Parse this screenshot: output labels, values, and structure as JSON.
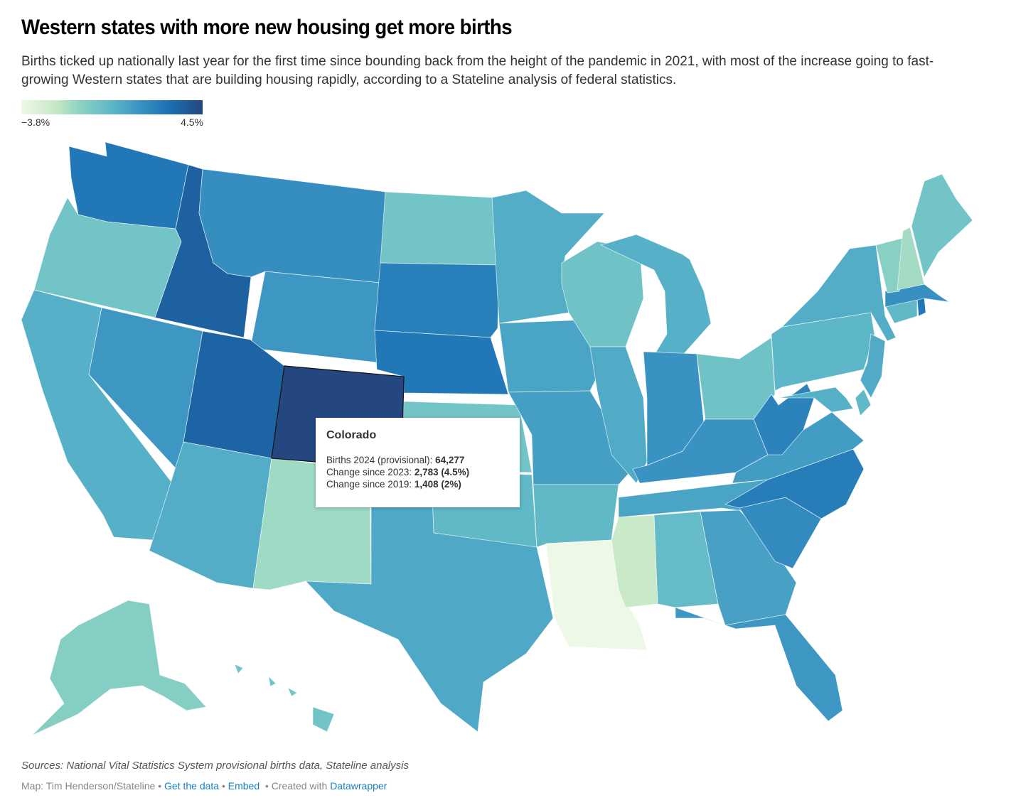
{
  "header": {
    "title": "Western states with more new housing get more births",
    "subtitle": "Births ticked up nationally last year for the first time since bounding back from the height of the pandemic in 2021, with most of the increase going to fast-growing Western states that are building housing rapidly, according to a Stateline analysis of federal statistics."
  },
  "legend": {
    "min_label": "−3.8%",
    "max_label": "4.5%",
    "min_value": -3.8,
    "max_value": 4.5,
    "colors": [
      "#eef8e6",
      "#c3e7c5",
      "#8dd3c3",
      "#5cb6c8",
      "#3b94c3",
      "#1b6fb2",
      "#24477f"
    ]
  },
  "chart_data": {
    "type": "choropleth",
    "title": "Western states with more new housing get more births",
    "metric": "Percent change in births since 2023",
    "scale": {
      "min": -3.8,
      "max": 4.5,
      "palette": "green-blue sequential"
    },
    "states": [
      {
        "id": "WA",
        "name": "Washington",
        "value": 2.8
      },
      {
        "id": "OR",
        "name": "Oregon",
        "value": -0.3
      },
      {
        "id": "CA",
        "name": "California",
        "value": 0.6
      },
      {
        "id": "ID",
        "name": "Idaho",
        "value": 3.6
      },
      {
        "id": "NV",
        "name": "Nevada",
        "value": 1.6
      },
      {
        "id": "MT",
        "name": "Montana",
        "value": 2.0
      },
      {
        "id": "WY",
        "name": "Wyoming",
        "value": 1.6
      },
      {
        "id": "UT",
        "name": "Utah",
        "value": 3.5
      },
      {
        "id": "CO",
        "name": "Colorado",
        "value": 4.5
      },
      {
        "id": "AZ",
        "name": "Arizona",
        "value": 0.7
      },
      {
        "id": "NM",
        "name": "New Mexico",
        "value": -1.5
      },
      {
        "id": "ND",
        "name": "North Dakota",
        "value": -0.3
      },
      {
        "id": "SD",
        "name": "South Dakota",
        "value": 2.5
      },
      {
        "id": "NE",
        "name": "Nebraska",
        "value": 2.8
      },
      {
        "id": "KS",
        "name": "Kansas",
        "value": -0.3
      },
      {
        "id": "OK",
        "name": "Oklahoma",
        "value": 0.2
      },
      {
        "id": "TX",
        "name": "Texas",
        "value": 0.9
      },
      {
        "id": "MN",
        "name": "Minnesota",
        "value": 0.7
      },
      {
        "id": "IA",
        "name": "Iowa",
        "value": 1.1
      },
      {
        "id": "MO",
        "name": "Missouri",
        "value": 1.3
      },
      {
        "id": "AR",
        "name": "Arkansas",
        "value": 0.2
      },
      {
        "id": "LA",
        "name": "Louisiana",
        "value": -3.8
      },
      {
        "id": "WI",
        "name": "Wisconsin",
        "value": -0.2
      },
      {
        "id": "IL",
        "name": "Illinois",
        "value": 0.8
      },
      {
        "id": "MI",
        "name": "Michigan",
        "value": 0.6
      },
      {
        "id": "IN",
        "name": "Indiana",
        "value": 1.8
      },
      {
        "id": "OH",
        "name": "Ohio",
        "value": -0.2
      },
      {
        "id": "KY",
        "name": "Kentucky",
        "value": 1.8
      },
      {
        "id": "TN",
        "name": "Tennessee",
        "value": 1.1
      },
      {
        "id": "MS",
        "name": "Mississippi",
        "value": -2.6
      },
      {
        "id": "AL",
        "name": "Alabama",
        "value": 0.1
      },
      {
        "id": "GA",
        "name": "Georgia",
        "value": 1.2
      },
      {
        "id": "FL",
        "name": "Florida",
        "value": 1.6
      },
      {
        "id": "SC",
        "name": "South Carolina",
        "value": 2.1
      },
      {
        "id": "NC",
        "name": "North Carolina",
        "value": 2.6
      },
      {
        "id": "VA",
        "name": "Virginia",
        "value": 1.4
      },
      {
        "id": "WV",
        "name": "West Virginia",
        "value": 2.4
      },
      {
        "id": "MD",
        "name": "Maryland",
        "value": 0.6
      },
      {
        "id": "DE",
        "name": "Delaware",
        "value": 0.2
      },
      {
        "id": "PA",
        "name": "Pennsylvania",
        "value": 0.3
      },
      {
        "id": "NJ",
        "name": "New Jersey",
        "value": 0.8
      },
      {
        "id": "NY",
        "name": "New York",
        "value": 0.7
      },
      {
        "id": "CT",
        "name": "Connecticut",
        "value": 0.2
      },
      {
        "id": "RI",
        "name": "Rhode Island",
        "value": 2.8
      },
      {
        "id": "MA",
        "name": "Massachusetts",
        "value": 1.9
      },
      {
        "id": "VT",
        "name": "Vermont",
        "value": -0.9
      },
      {
        "id": "NH",
        "name": "New Hampshire",
        "value": -1.6
      },
      {
        "id": "ME",
        "name": "Maine",
        "value": -0.3
      },
      {
        "id": "AK",
        "name": "Alaska",
        "value": -0.8
      },
      {
        "id": "HI",
        "name": "Hawaii",
        "value": -0.3
      }
    ]
  },
  "tooltip": {
    "state": "Colorado",
    "rows": [
      {
        "label": "Births 2024 (provisional): ",
        "value": "64,277"
      },
      {
        "label": "Change since 2023: ",
        "value": "2,783 (4.5%)"
      },
      {
        "label": "Change since 2019: ",
        "value": "1,408 (2%)"
      }
    ]
  },
  "footer": {
    "notes": "Sources: National Vital Statistics System provisional births data, Stateline analysis",
    "byline": "Map: Tim Henderson/Stateline",
    "sep": " • ",
    "get_data": "Get the data",
    "embed": "Embed",
    "created_with": "Created with",
    "datawrapper": "Datawrapper"
  }
}
